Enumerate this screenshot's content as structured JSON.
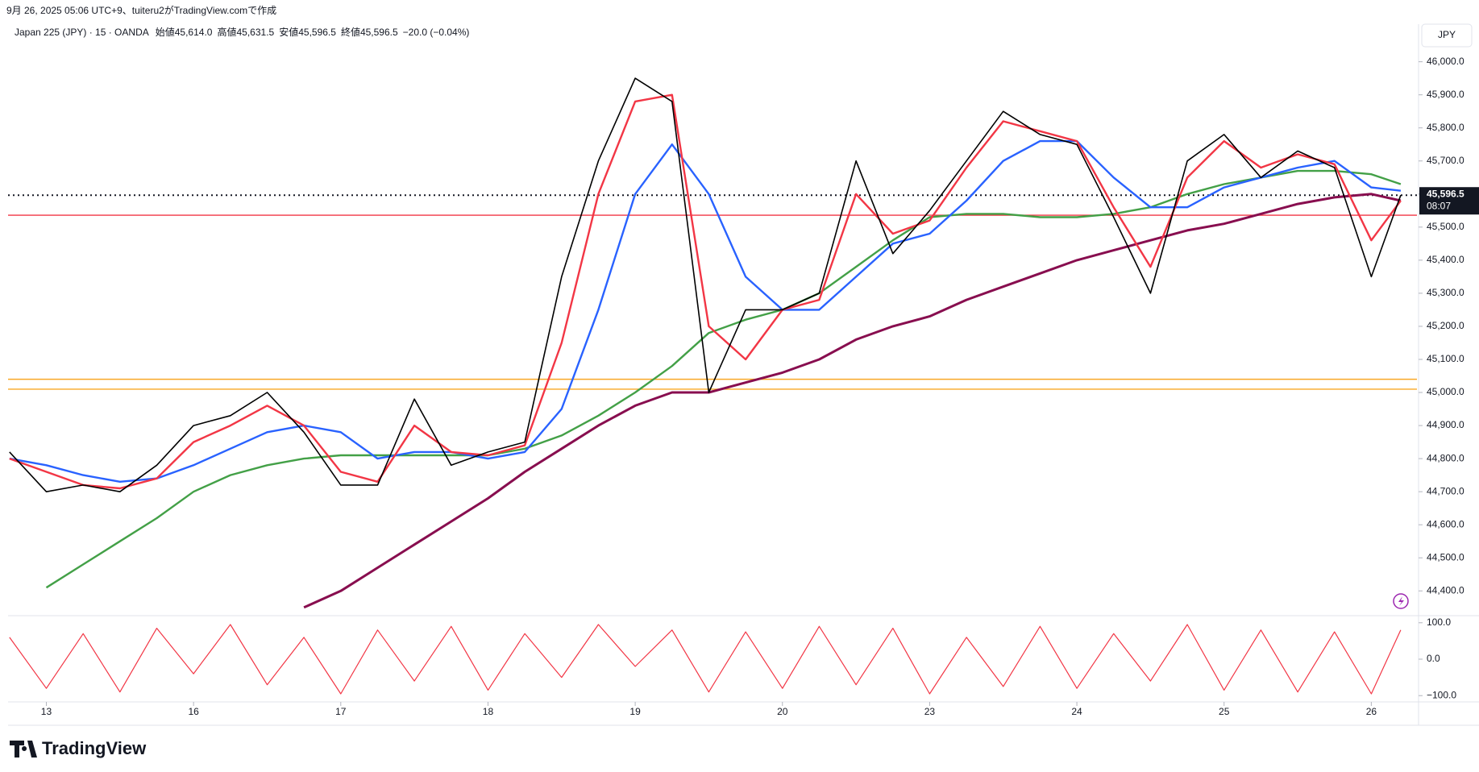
{
  "header": "9月 26, 2025 05:06 UTC+9、tuiteru2がTradingView.comで作成",
  "legend": {
    "symbol": "Japan 225 (JPY) · 15 · OANDA",
    "ohlc": [
      {
        "label": "始値",
        "value": "45,614.0"
      },
      {
        "label": "高値",
        "value": "45,631.5"
      },
      {
        "label": "安値",
        "value": "45,596.5"
      },
      {
        "label": "終値",
        "value": "45,596.5"
      }
    ],
    "change": "−20.0 (−0.04%)"
  },
  "currency": "JPY",
  "brand": "TradingView",
  "chart_data": {
    "type": "line",
    "x": [
      -0.25,
      0,
      0.25,
      0.5,
      0.75,
      1,
      1.25,
      1.5,
      1.75,
      2,
      2.25,
      2.5,
      2.75,
      3,
      3.25,
      3.5,
      3.75,
      4,
      4.25,
      4.5,
      4.75,
      5,
      5.25,
      5.5,
      5.75,
      6,
      6.25,
      6.5,
      6.75,
      7,
      7.25,
      7.5,
      7.75,
      8,
      8.25,
      8.5,
      8.75,
      9,
      9.2
    ],
    "xlim": [
      -0.26,
      9.31
    ],
    "xticks": [
      {
        "value": 0,
        "label": "13"
      },
      {
        "value": 1,
        "label": "16"
      },
      {
        "value": 2,
        "label": "17"
      },
      {
        "value": 3,
        "label": "18"
      },
      {
        "value": 4,
        "label": "19"
      },
      {
        "value": 5,
        "label": "20"
      },
      {
        "value": 6,
        "label": "23"
      },
      {
        "value": 7,
        "label": "24"
      },
      {
        "value": 8,
        "label": "25"
      },
      {
        "value": 9,
        "label": "26"
      }
    ],
    "ylim": [
      44330,
      46060
    ],
    "yticks": [
      {
        "value": 44400,
        "label": "44,400.0"
      },
      {
        "value": 44500,
        "label": "44,500.0"
      },
      {
        "value": 44600,
        "label": "44,600.0"
      },
      {
        "value": 44700,
        "label": "44,700.0"
      },
      {
        "value": 44800,
        "label": "44,800.0"
      },
      {
        "value": 44900,
        "label": "44,900.0"
      },
      {
        "value": 45000,
        "label": "45,000.0"
      },
      {
        "value": 45100,
        "label": "45,100.0"
      },
      {
        "value": 45200,
        "label": "45,200.0"
      },
      {
        "value": 45300,
        "label": "45,300.0"
      },
      {
        "value": 45400,
        "label": "45,400.0"
      },
      {
        "value": 45500,
        "label": "45,500.0"
      },
      {
        "value": 45600,
        "label": "45,600.0"
      },
      {
        "value": 45700,
        "label": "45,700.0"
      },
      {
        "value": 45800,
        "label": "45,800.0"
      },
      {
        "value": 45900,
        "label": "45,900.0"
      },
      {
        "value": 46000,
        "label": "46,000.0"
      }
    ],
    "series": [
      {
        "name": "Japan 225",
        "color": "#000000",
        "width": 1.6,
        "values": [
          44820,
          44700,
          44720,
          44700,
          44780,
          44900,
          44930,
          45000,
          44880,
          44720,
          44720,
          44980,
          44780,
          44820,
          44850,
          45350,
          45700,
          45950,
          45880,
          45000,
          45250,
          45250,
          45300,
          45700,
          45420,
          45550,
          45700,
          45850,
          45780,
          45750,
          45530,
          45300,
          45700,
          45780,
          45650,
          45730,
          45680,
          45350,
          45596.5
        ]
      },
      {
        "color": "#f23645",
        "width": 2.4,
        "values": [
          44800,
          44760,
          44720,
          44710,
          44740,
          44850,
          44900,
          44960,
          44900,
          44760,
          44730,
          44900,
          44820,
          44810,
          44840,
          45150,
          45600,
          45880,
          45900,
          45200,
          45100,
          45250,
          45280,
          45600,
          45480,
          45520,
          45680,
          45820,
          45790,
          45760,
          45560,
          45380,
          45650,
          45760,
          45680,
          45720,
          45690,
          45460,
          45580
        ]
      },
      {
        "color": "#2962ff",
        "width": 2.4,
        "values": [
          44800,
          44780,
          44750,
          44730,
          44740,
          44780,
          44830,
          44880,
          44900,
          44880,
          44800,
          44820,
          44820,
          44800,
          44820,
          44950,
          45250,
          45600,
          45750,
          45600,
          45350,
          45250,
          45250,
          45350,
          45450,
          45480,
          45580,
          45700,
          45760,
          45760,
          45650,
          45560,
          45560,
          45620,
          45650,
          45680,
          45700,
          45620,
          45610
        ]
      },
      {
        "color": "#43a047",
        "width": 2.4,
        "values": [
          null,
          44410,
          44480,
          44550,
          44620,
          44700,
          44750,
          44780,
          44800,
          44810,
          44810,
          44810,
          44810,
          44810,
          44830,
          44870,
          44930,
          45000,
          45080,
          45180,
          45220,
          45250,
          45300,
          45380,
          45460,
          45530,
          45540,
          45540,
          45530,
          45530,
          45540,
          45560,
          45600,
          45630,
          45650,
          45670,
          45670,
          45660,
          45630
        ]
      },
      {
        "color": "#880e4f",
        "width": 3,
        "values": [
          null,
          null,
          null,
          null,
          null,
          null,
          null,
          null,
          44350,
          44400,
          44470,
          44540,
          44610,
          44680,
          44760,
          44830,
          44900,
          44960,
          45000,
          45000,
          45030,
          45060,
          45100,
          45160,
          45200,
          45230,
          45280,
          45320,
          45360,
          45400,
          45430,
          45460,
          45490,
          45510,
          45540,
          45570,
          45590,
          45600,
          45580
        ]
      }
    ],
    "levels": [
      {
        "value": 45536,
        "color": "#f23645",
        "style": "solid"
      },
      {
        "value": 45040,
        "color": "#f9a825",
        "style": "solid"
      },
      {
        "value": 45010,
        "color": "#f9a825",
        "style": "solid"
      },
      {
        "value": 45596.5,
        "color": "#131722",
        "style": "dotted"
      }
    ],
    "last_price": {
      "value": 45596.5,
      "label": "45,596.5"
    },
    "countdown": "08:07",
    "oscillator": {
      "color": "#f23645",
      "ylim": [
        -115,
        115
      ],
      "yticks": [
        {
          "value": 100,
          "label": "100.0"
        },
        {
          "value": 0,
          "label": "0.0"
        },
        {
          "value": -100,
          "label": "−100.0"
        }
      ],
      "values": [
        60,
        -80,
        70,
        -90,
        85,
        -40,
        95,
        -70,
        60,
        -95,
        80,
        -60,
        90,
        -85,
        70,
        -50,
        95,
        -20,
        80,
        -90,
        75,
        -80,
        90,
        -70,
        85,
        -95,
        60,
        -75,
        90,
        -80,
        70,
        -60,
        95,
        -85,
        80,
        -90,
        75,
        -95,
        80
      ]
    }
  }
}
